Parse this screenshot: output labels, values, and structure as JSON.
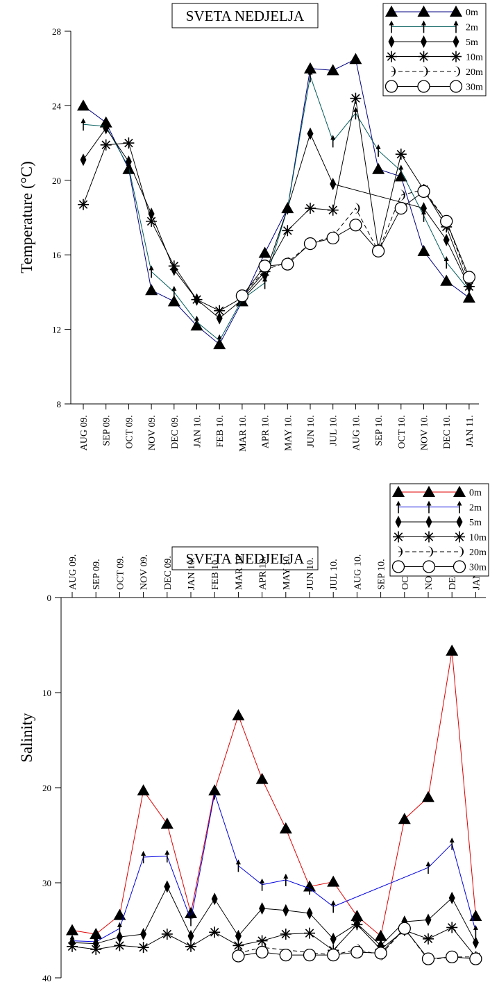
{
  "chart_data": [
    {
      "type": "line",
      "title": "SVETA NEDJELJA",
      "xlabel": "",
      "ylabel": "Temperature (°C)",
      "ylim": [
        8,
        28
      ],
      "yticks": [
        "8",
        "12",
        "16",
        "20",
        "24",
        "28"
      ],
      "categories": [
        "AUG 09.",
        "SEP 09.",
        "OCT 09.",
        "NOV 09.",
        "DEC 09.",
        "JAN 10.",
        "FEB 10.",
        "MAR 10.",
        "APR 10.",
        "MAY 10.",
        "JUN 10.",
        "JUL 10.",
        "AUG 10.",
        "SEP 10.",
        "OCT 10.",
        "NOV 10.",
        "DEC 10.",
        "JAN 11."
      ],
      "legend_position": "top-right",
      "grid": false,
      "series": [
        {
          "name": "0m",
          "marker": "triangle",
          "color": "#000080",
          "values": [
            24.0,
            23.1,
            20.6,
            14.1,
            13.5,
            12.2,
            11.2,
            13.5,
            16.1,
            18.5,
            26.0,
            25.9,
            26.5,
            20.6,
            20.2,
            16.2,
            14.6,
            13.7
          ]
        },
        {
          "name": "2m",
          "marker": "arrow",
          "color": "#005a5a",
          "values": [
            23.0,
            22.9,
            20.7,
            15.1,
            14.0,
            12.4,
            11.4,
            13.6,
            14.5,
            18.5,
            25.6,
            22.1,
            23.6,
            21.6,
            20.5,
            18.1,
            15.6,
            14.1
          ]
        },
        {
          "name": "5m",
          "marker": "diamond",
          "color": "#000000",
          "values": [
            21.1,
            22.8,
            21.0,
            18.2,
            15.2,
            13.6,
            12.6,
            13.6,
            14.9,
            18.5,
            22.5,
            19.8,
            null,
            null,
            null,
            18.5,
            16.8,
            14.3
          ]
        },
        {
          "name": "10m",
          "marker": "star",
          "color": "#000000",
          "values": [
            18.7,
            21.9,
            22.0,
            17.8,
            15.4,
            13.6,
            13.0,
            13.7,
            15.1,
            17.3,
            18.5,
            18.4,
            24.4,
            16.3,
            21.4,
            19.5,
            17.5,
            14.3
          ]
        },
        {
          "name": "20m",
          "marker": "moon",
          "color": "#000000",
          "dashed": true,
          "values": [
            null,
            null,
            null,
            null,
            null,
            null,
            null,
            13.8,
            15.2,
            15.6,
            16.6,
            17.0,
            18.5,
            16.2,
            19.2,
            19.5,
            17.8,
            14.6
          ]
        },
        {
          "name": "30m",
          "marker": "circle",
          "color": "#000000",
          "values": [
            null,
            null,
            null,
            null,
            null,
            null,
            null,
            13.8,
            15.4,
            15.5,
            16.6,
            16.9,
            17.6,
            16.2,
            18.5,
            19.4,
            17.8,
            14.8
          ]
        }
      ]
    },
    {
      "type": "line",
      "title": "SVETA NEDJELJA",
      "xlabel": "",
      "ylabel": "Salinity",
      "ylim": [
        0,
        40
      ],
      "y_inverted": true,
      "yticks": [
        "0",
        "10",
        "20",
        "30",
        "40"
      ],
      "categories": [
        "AUG 09.",
        "SEP 09.",
        "OCT 09.",
        "NOV 09.",
        "DEC 09.",
        "JAN 10.",
        "FEB 10.",
        "MAR 10.",
        "APR 10.",
        "MAY 10.",
        "JUN 10.",
        "JUL 10.",
        "AUG 10.",
        "SEP 10.",
        "OCT 10.",
        "NOV 10.",
        "DEC 10.",
        "JAN 11."
      ],
      "legend_position": "top-right",
      "grid": false,
      "series": [
        {
          "name": "0m",
          "marker": "triangle",
          "color": "#e00000",
          "values": [
            35.0,
            35.4,
            33.4,
            20.3,
            23.8,
            33.2,
            20.3,
            12.4,
            19.1,
            24.3,
            30.4,
            29.9,
            33.5,
            35.6,
            23.3,
            21.0,
            5.6,
            33.5
          ]
        },
        {
          "name": "2m",
          "marker": "arrow",
          "color": "#0000e0",
          "values": [
            36.1,
            36.2,
            34.8,
            27.3,
            27.2,
            33.9,
            20.6,
            28.2,
            30.2,
            29.7,
            30.6,
            32.5,
            null,
            null,
            null,
            28.4,
            25.9,
            35.1
          ]
        },
        {
          "name": "5m",
          "marker": "diamond",
          "color": "#000000",
          "values": [
            36.3,
            36.4,
            35.7,
            35.4,
            30.4,
            35.6,
            31.7,
            35.6,
            32.7,
            32.9,
            33.2,
            35.9,
            34.3,
            36.6,
            34.1,
            33.9,
            31.6,
            36.3
          ]
        },
        {
          "name": "10m",
          "marker": "star",
          "color": "#000000",
          "values": [
            36.7,
            37.0,
            36.6,
            36.8,
            35.4,
            36.7,
            35.2,
            36.6,
            36.1,
            35.4,
            35.3,
            37.1,
            34.4,
            37.0,
            35.0,
            35.9,
            34.7,
            37.8
          ]
        },
        {
          "name": "20m",
          "marker": "moon",
          "color": "#000000",
          "dashed": true,
          "values": [
            null,
            null,
            null,
            null,
            null,
            null,
            null,
            37.4,
            36.8,
            null,
            null,
            37.6,
            37.0,
            37.6,
            34.8,
            38.1,
            37.8,
            37.8
          ]
        },
        {
          "name": "30m",
          "marker": "circle",
          "color": "#000000",
          "values": [
            null,
            null,
            null,
            null,
            null,
            null,
            null,
            37.7,
            37.3,
            37.6,
            37.6,
            37.6,
            37.3,
            37.4,
            34.8,
            38.0,
            37.8,
            38.0
          ]
        }
      ]
    }
  ]
}
